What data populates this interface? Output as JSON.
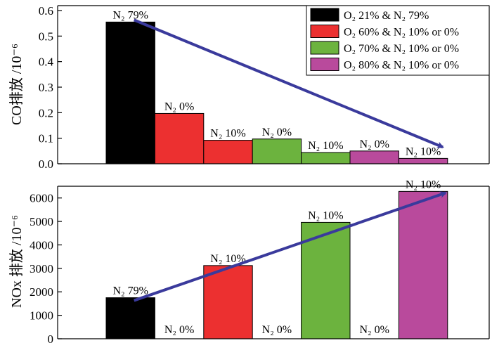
{
  "chart_data": [
    {
      "type": "bar",
      "ylabel": "CO排放 /10⁻⁶",
      "ylim": [
        0,
        0.6
      ],
      "yticks": [
        "0.0",
        "0.1",
        "0.2",
        "0.3",
        "0.4",
        "0.5",
        "0.6"
      ],
      "grid": false,
      "legend_position": "top-right",
      "bars": [
        {
          "series": 0,
          "value": 0.555,
          "label": "N₂ 79%"
        },
        {
          "series": 1,
          "value": 0.197,
          "label": "N₂ 0%"
        },
        {
          "series": 1,
          "value": 0.092,
          "label": "N₂ 10%"
        },
        {
          "series": 2,
          "value": 0.097,
          "label": "N₂ 0%"
        },
        {
          "series": 2,
          "value": 0.044,
          "label": "N₂ 10%"
        },
        {
          "series": 3,
          "value": 0.05,
          "label": "N₂ 0%"
        },
        {
          "series": 3,
          "value": 0.021,
          "label": "N₂ 10%"
        }
      ],
      "trend_arrow": {
        "from_bar": 0,
        "to_bar": 6,
        "direction": "down"
      }
    },
    {
      "type": "bar",
      "ylabel": "NOx 排放 /10⁻⁶",
      "ylim": [
        0,
        6500
      ],
      "yticks": [
        "0",
        "1000",
        "2000",
        "3000",
        "4000",
        "5000",
        "6000"
      ],
      "grid": false,
      "bars": [
        {
          "series": 0,
          "value": 1750,
          "label": "N₂ 79%"
        },
        {
          "series": 1,
          "value": 0,
          "label": "N₂ 0%"
        },
        {
          "series": 1,
          "value": 3120,
          "label": "N₂ 10%"
        },
        {
          "series": 2,
          "value": 0,
          "label": "N₂ 0%"
        },
        {
          "series": 2,
          "value": 4960,
          "label": "N₂ 10%"
        },
        {
          "series": 3,
          "value": 0,
          "label": "N₂ 0%"
        },
        {
          "series": 3,
          "value": 6280,
          "label": "N₂ 10%"
        }
      ],
      "trend_arrow": {
        "from_bar": 0,
        "to_bar": 6,
        "direction": "up"
      }
    }
  ],
  "legend": [
    {
      "label": "O₂ 21% & N₂ 79%",
      "color": "#000000"
    },
    {
      "label": "O₂ 60% & N₂ 10% or 0%",
      "color": "#ec3030"
    },
    {
      "label": "O₂ 70% & N₂ 10% or 0%",
      "color": "#6cb33e"
    },
    {
      "label": "O₂ 80% & N₂ 10% or 0%",
      "color": "#b94a9c"
    }
  ],
  "arrow_color": "#3a3a9c"
}
